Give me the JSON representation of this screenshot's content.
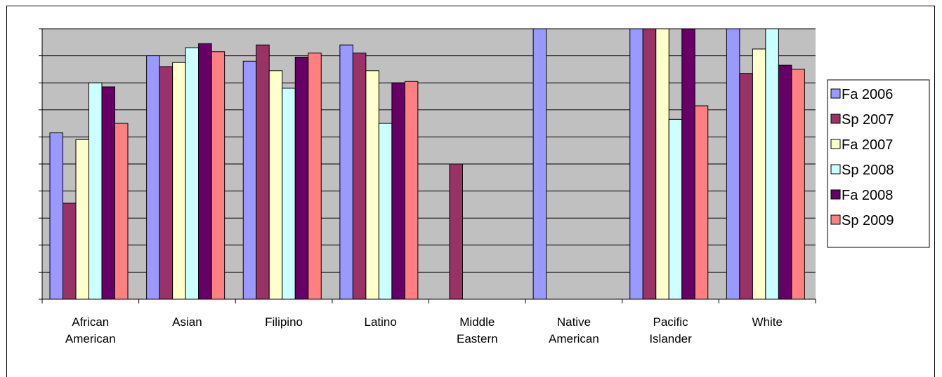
{
  "chart_data": {
    "type": "bar",
    "title": "",
    "xlabel": "",
    "ylabel": "",
    "ylim": [
      0,
      100
    ],
    "grid": true,
    "legend_position": "right",
    "categories": [
      [
        "African",
        "American"
      ],
      [
        "Asian"
      ],
      [
        "Filipino"
      ],
      [
        "Latino"
      ],
      [
        "Middle",
        "Eastern"
      ],
      [
        "Native",
        "American"
      ],
      [
        "Pacific",
        "Islander"
      ],
      [
        "White"
      ]
    ],
    "series": [
      {
        "name": "Fa 2006",
        "color": "#9999FF",
        "values": [
          61.5,
          90,
          88,
          94,
          null,
          100,
          100,
          100
        ]
      },
      {
        "name": "Sp 2007",
        "color": "#993366",
        "values": [
          35.5,
          86,
          94,
          91,
          50,
          null,
          100,
          83.5
        ]
      },
      {
        "name": "Fa 2007",
        "color": "#FFFFCC",
        "values": [
          59,
          87.5,
          84.5,
          84.5,
          null,
          null,
          100,
          92.5
        ]
      },
      {
        "name": "Sp 2008",
        "color": "#CCFFFF",
        "values": [
          80,
          93,
          78,
          65,
          null,
          null,
          66.5,
          100
        ]
      },
      {
        "name": "Fa 2008",
        "color": "#660066",
        "values": [
          78.5,
          94.5,
          89.5,
          80,
          null,
          null,
          100,
          86.5
        ]
      },
      {
        "name": "Sp 2009",
        "color": "#FF8080",
        "values": [
          65,
          91.5,
          91,
          80.5,
          null,
          null,
          71.5,
          85
        ]
      }
    ],
    "plot_background": "#C0C0C0"
  }
}
